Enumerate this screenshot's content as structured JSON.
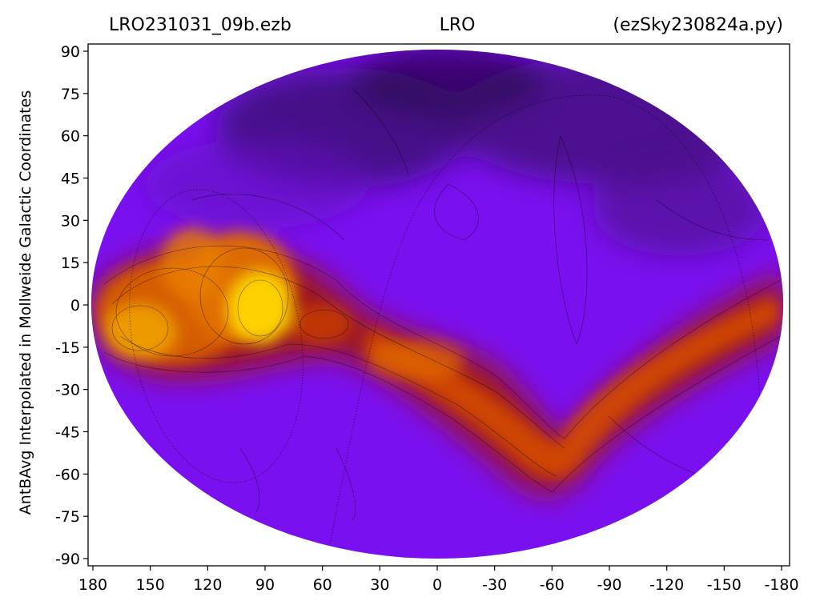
{
  "chart_data": {
    "type": "heatmap",
    "projection": "Mollweide",
    "colormap": "gnuplot",
    "title": {
      "left": "LRO231031_09b.ezb",
      "center": "LRO",
      "right": "(ezSky230824a.py)"
    },
    "xlabel": "",
    "ylabel": "AntBAvg Interpolated in Mollweide Galactic Coordinates",
    "xlim": [
      180,
      -180
    ],
    "ylim": [
      -90,
      90
    ],
    "x_ticks": [
      "180",
      "150",
      "120",
      "90",
      "60",
      "30",
      "0",
      "-30",
      "-60",
      "-90",
      "-120",
      "-150",
      "-180"
    ],
    "y_ticks": [
      "90",
      "75",
      "60",
      "45",
      "30",
      "15",
      "0",
      "-15",
      "-30",
      "-45",
      "-60",
      "-75",
      "-90"
    ],
    "contour_lines": true,
    "grid": false
  }
}
